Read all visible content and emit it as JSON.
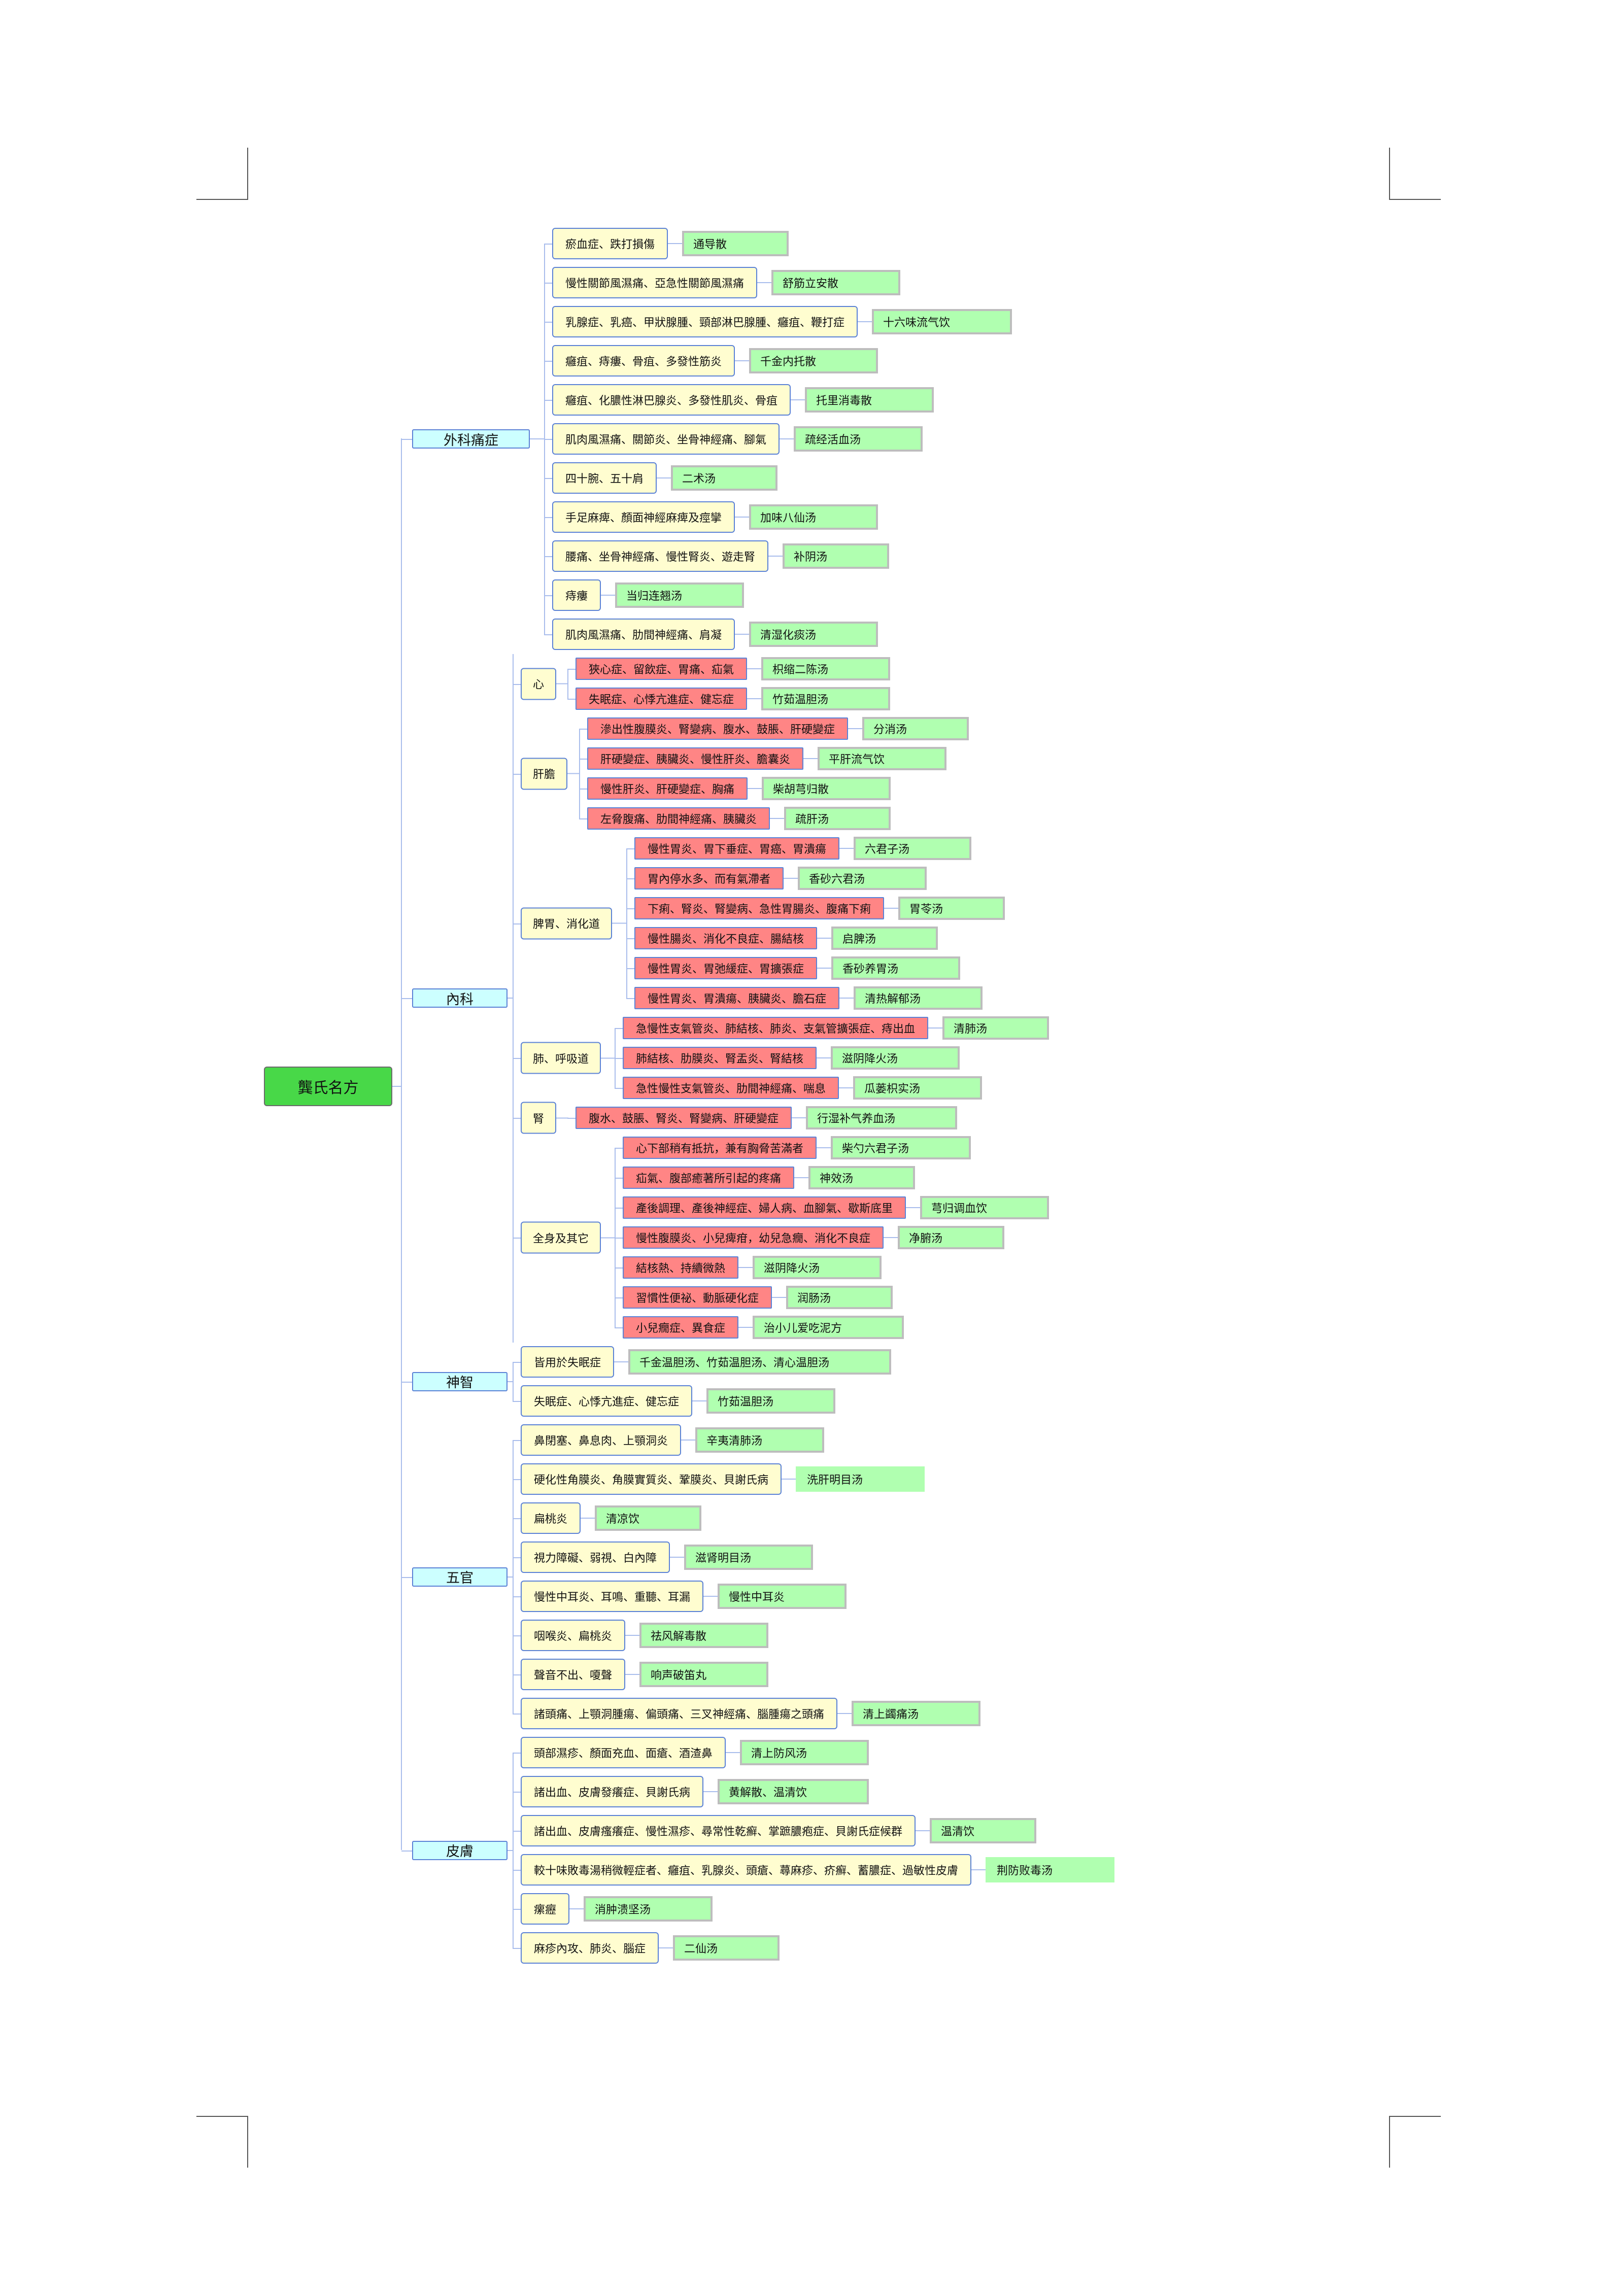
{
  "root": "龔氏名方",
  "sections": [
    {
      "label": "外科痛症",
      "items": [
        {
          "cond": "瘀血症、跌打損傷",
          "formula": "通导散"
        },
        {
          "cond": "慢性關節風濕痛、亞急性關節風濕痛",
          "formula": "舒筋立安散"
        },
        {
          "cond": "乳腺症、乳癌、甲狀腺腫、頸部淋巴腺腫、癰疽、鞭打症",
          "formula": "十六味流气饮"
        },
        {
          "cond": "癰疽、痔瘻、骨疽、多發性筋炎",
          "formula": "千金内托散"
        },
        {
          "cond": "癰疽、化膿性淋巴腺炎、多發性肌炎、骨疽",
          "formula": "托里消毒散"
        },
        {
          "cond": "肌肉風濕痛、關節炎、坐骨神經痛、腳氣",
          "formula": "疏经活血汤"
        },
        {
          "cond": "四十腕、五十肩",
          "formula": "二术汤"
        },
        {
          "cond": "手足麻痺、顏面神經麻痺及痙攣",
          "formula": "加味八仙汤"
        },
        {
          "cond": "腰痛、坐骨神經痛、慢性腎炎、遊走腎",
          "formula": "补阴汤"
        },
        {
          "cond": "痔瘻",
          "formula": "当归连翘汤"
        },
        {
          "cond": "肌肉風濕痛、肋間神經痛、肩凝",
          "formula": "清湿化痰汤"
        }
      ]
    },
    {
      "label": "內科",
      "groups": [
        {
          "label": "心",
          "items": [
            {
              "cond": "狹心症、留飲症、胃痛、疝氣",
              "formula": "枳缩二陈汤"
            },
            {
              "cond": "失眠症、心悸亢進症、健忘症",
              "formula": "竹茹温胆汤"
            }
          ]
        },
        {
          "label": "肝膽",
          "items": [
            {
              "cond": "滲出性腹膜炎、腎變病、腹水、鼓脹、肝硬變症",
              "formula": "分消汤"
            },
            {
              "cond": "肝硬變症、胰臟炎、慢性肝炎、膽囊炎",
              "formula": "平肝流气饮"
            },
            {
              "cond": "慢性肝炎、肝硬變症、胸痛",
              "formula": "柴胡芎归散"
            },
            {
              "cond": "左脅腹痛、肋間神經痛、胰臟炎",
              "formula": "疏肝汤"
            }
          ]
        },
        {
          "label": "脾胃、消化道",
          "items": [
            {
              "cond": "慢性胃炎、胃下垂症、胃癌、胃潰瘍",
              "formula": "六君子汤"
            },
            {
              "cond": "胃內停水多、而有氣滯者",
              "formula": "香砂六君汤"
            },
            {
              "cond": "下痢、腎炎、腎變病、急性胃腸炎、腹痛下痢",
              "formula": "胃苓汤"
            },
            {
              "cond": "慢性腸炎、消化不良症、腸結核",
              "formula": "启脾汤"
            },
            {
              "cond": "慢性胃炎、胃弛緩症、胃擴張症",
              "formula": "香砂养胃汤"
            },
            {
              "cond": "慢性胃炎、胃潰瘍、胰臟炎、膽石症",
              "formula": "清热解郁汤"
            }
          ]
        },
        {
          "label": "肺、呼吸道",
          "items": [
            {
              "cond": "急慢性支氣管炎、肺結核、肺炎、支氣管擴張症、痔出血",
              "formula": "清肺汤"
            },
            {
              "cond": "肺結核、肋膜炎、腎盂炎、腎結核",
              "formula": "滋阴降火汤"
            },
            {
              "cond": "急性慢性支氣管炎、肋間神經痛、喘息",
              "formula": "瓜蒌枳实汤"
            }
          ]
        },
        {
          "label": "腎",
          "items": [
            {
              "cond": "腹水、鼓脹、腎炎、腎變病、肝硬變症",
              "formula": "行湿补气养血汤"
            }
          ]
        },
        {
          "label": "全身及其它",
          "items": [
            {
              "cond": "心下部稍有抵抗，兼有胸脅苦滿者",
              "formula": "柴勺六君子汤"
            },
            {
              "cond": "疝氣、腹部癒著所引起的疼痛",
              "formula": "神效汤"
            },
            {
              "cond": "產後調理、產後神經症、婦人病、血腳氣、歇斯底里",
              "formula": "芎归调血饮"
            },
            {
              "cond": "慢性腹膜炎、小兒痺疳，幼兒急癇、消化不良症",
              "formula": "净腑汤"
            },
            {
              "cond": "結核熱、持續微熱",
              "formula": "滋阴降火汤"
            },
            {
              "cond": "習慣性便祕、動脈硬化症",
              "formula": "润肠汤"
            },
            {
              "cond": "小兒癇症、異食症",
              "formula": "治小儿爱吃泥方"
            }
          ]
        }
      ]
    },
    {
      "label": "神智",
      "items": [
        {
          "cond": "皆用於失眠症",
          "formula": "千金温胆汤、竹茹温胆汤、清心温胆汤"
        },
        {
          "cond": "失眠症、心悸亢進症、健忘症",
          "formula": "竹茹温胆汤"
        }
      ]
    },
    {
      "label": "五官",
      "items": [
        {
          "cond": "鼻閉塞、鼻息肉、上顎洞炎",
          "formula": "辛夷清肺汤"
        },
        {
          "cond": "硬化性角膜炎、角膜實質炎、鞏膜炎、貝謝氏病",
          "formula": "洗肝明目汤",
          "frame": false
        },
        {
          "cond": "扁桃炎",
          "formula": "清凉饮"
        },
        {
          "cond": "視力障礙、弱視、白內障",
          "formula": "滋肾明目汤"
        },
        {
          "cond": "慢性中耳炎、耳鳴、重聽、耳漏",
          "formula": "慢性中耳炎"
        },
        {
          "cond": "咽喉炎、扁桃炎",
          "formula": "祛风解毒散"
        },
        {
          "cond": "聲音不出、嗄聲",
          "formula": "响声破笛丸"
        },
        {
          "cond": "諸頭痛、上顎洞腫瘍、偏頭痛、三叉神經痛、腦腫瘍之頭痛",
          "formula": "清上蠲痛汤"
        }
      ]
    },
    {
      "label": "皮膚",
      "items": [
        {
          "cond": "頭部濕疹、顏面充血、面瘡、酒渣鼻",
          "formula": "清上防风汤"
        },
        {
          "cond": "諸出血、皮膚發癢症、貝謝氏病",
          "formula": "黄解散、温清饮"
        },
        {
          "cond": "諸出血、皮膚瘙癢症、慢性濕疹、尋常性乾癬、掌蹠膿疱症、貝謝氏症候群",
          "formula": "温清饮"
        },
        {
          "cond": "較十味敗毒湯稍微輕症者、癰疽、乳腺炎、頭瘡、蕁麻疹、疥癬、蓄膿症、過敏性皮膚",
          "formula": "荆防败毒汤",
          "frame": false
        },
        {
          "cond": "瘰癧",
          "formula": "消肿溃坚汤"
        },
        {
          "cond": "麻疹內攻、肺炎、腦症",
          "formula": "二仙汤"
        }
      ]
    }
  ]
}
